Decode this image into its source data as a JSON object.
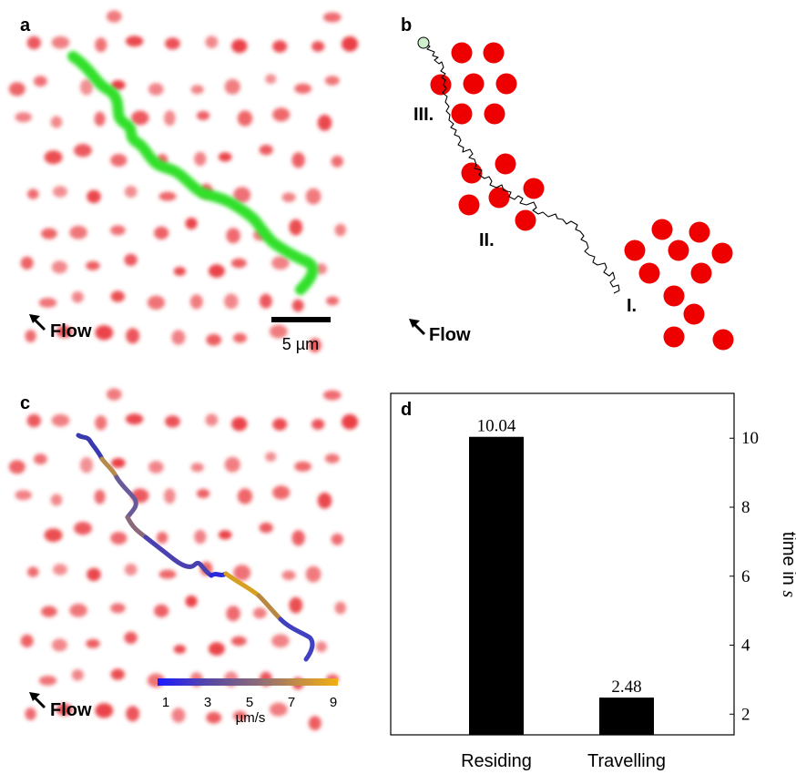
{
  "panels": {
    "a": {
      "letter": "a",
      "flow_label": "Flow",
      "scale_bar_label": "5 µm",
      "colors": {
        "dots": "#e8343a",
        "track": "#33e02a"
      }
    },
    "b": {
      "letter": "b",
      "flow_label": "Flow",
      "regions": [
        "III.",
        "II.",
        "I."
      ],
      "colors": {
        "dots": "#ee0000",
        "path": "#000000",
        "start_marker": "#33e02a"
      }
    },
    "c": {
      "letter": "c",
      "flow_label": "Flow",
      "colorbar": {
        "ticks": [
          "1",
          "3",
          "5",
          "7",
          "9"
        ],
        "unit": "µm/s",
        "colors": [
          "#1a1aff",
          "#5a4aa0",
          "#8a6a7a",
          "#b58a4a",
          "#f0b010"
        ]
      }
    },
    "d": {
      "letter": "d"
    }
  },
  "chart_data": {
    "type": "bar",
    "categories": [
      "Residing",
      "Travelling"
    ],
    "values": [
      10.04,
      2.48
    ],
    "data_labels": [
      "10.04",
      "2.48"
    ],
    "ylabel_text": "time in ",
    "ylabel_var": "s",
    "ylim": [
      1.4,
      11.3
    ],
    "yticks": [
      2,
      4,
      6,
      8,
      10
    ],
    "ytick_labels": [
      "2",
      "4",
      "6",
      "8",
      "10"
    ],
    "yaxis_position": "right",
    "grid": false,
    "bar_color": "#000000"
  }
}
